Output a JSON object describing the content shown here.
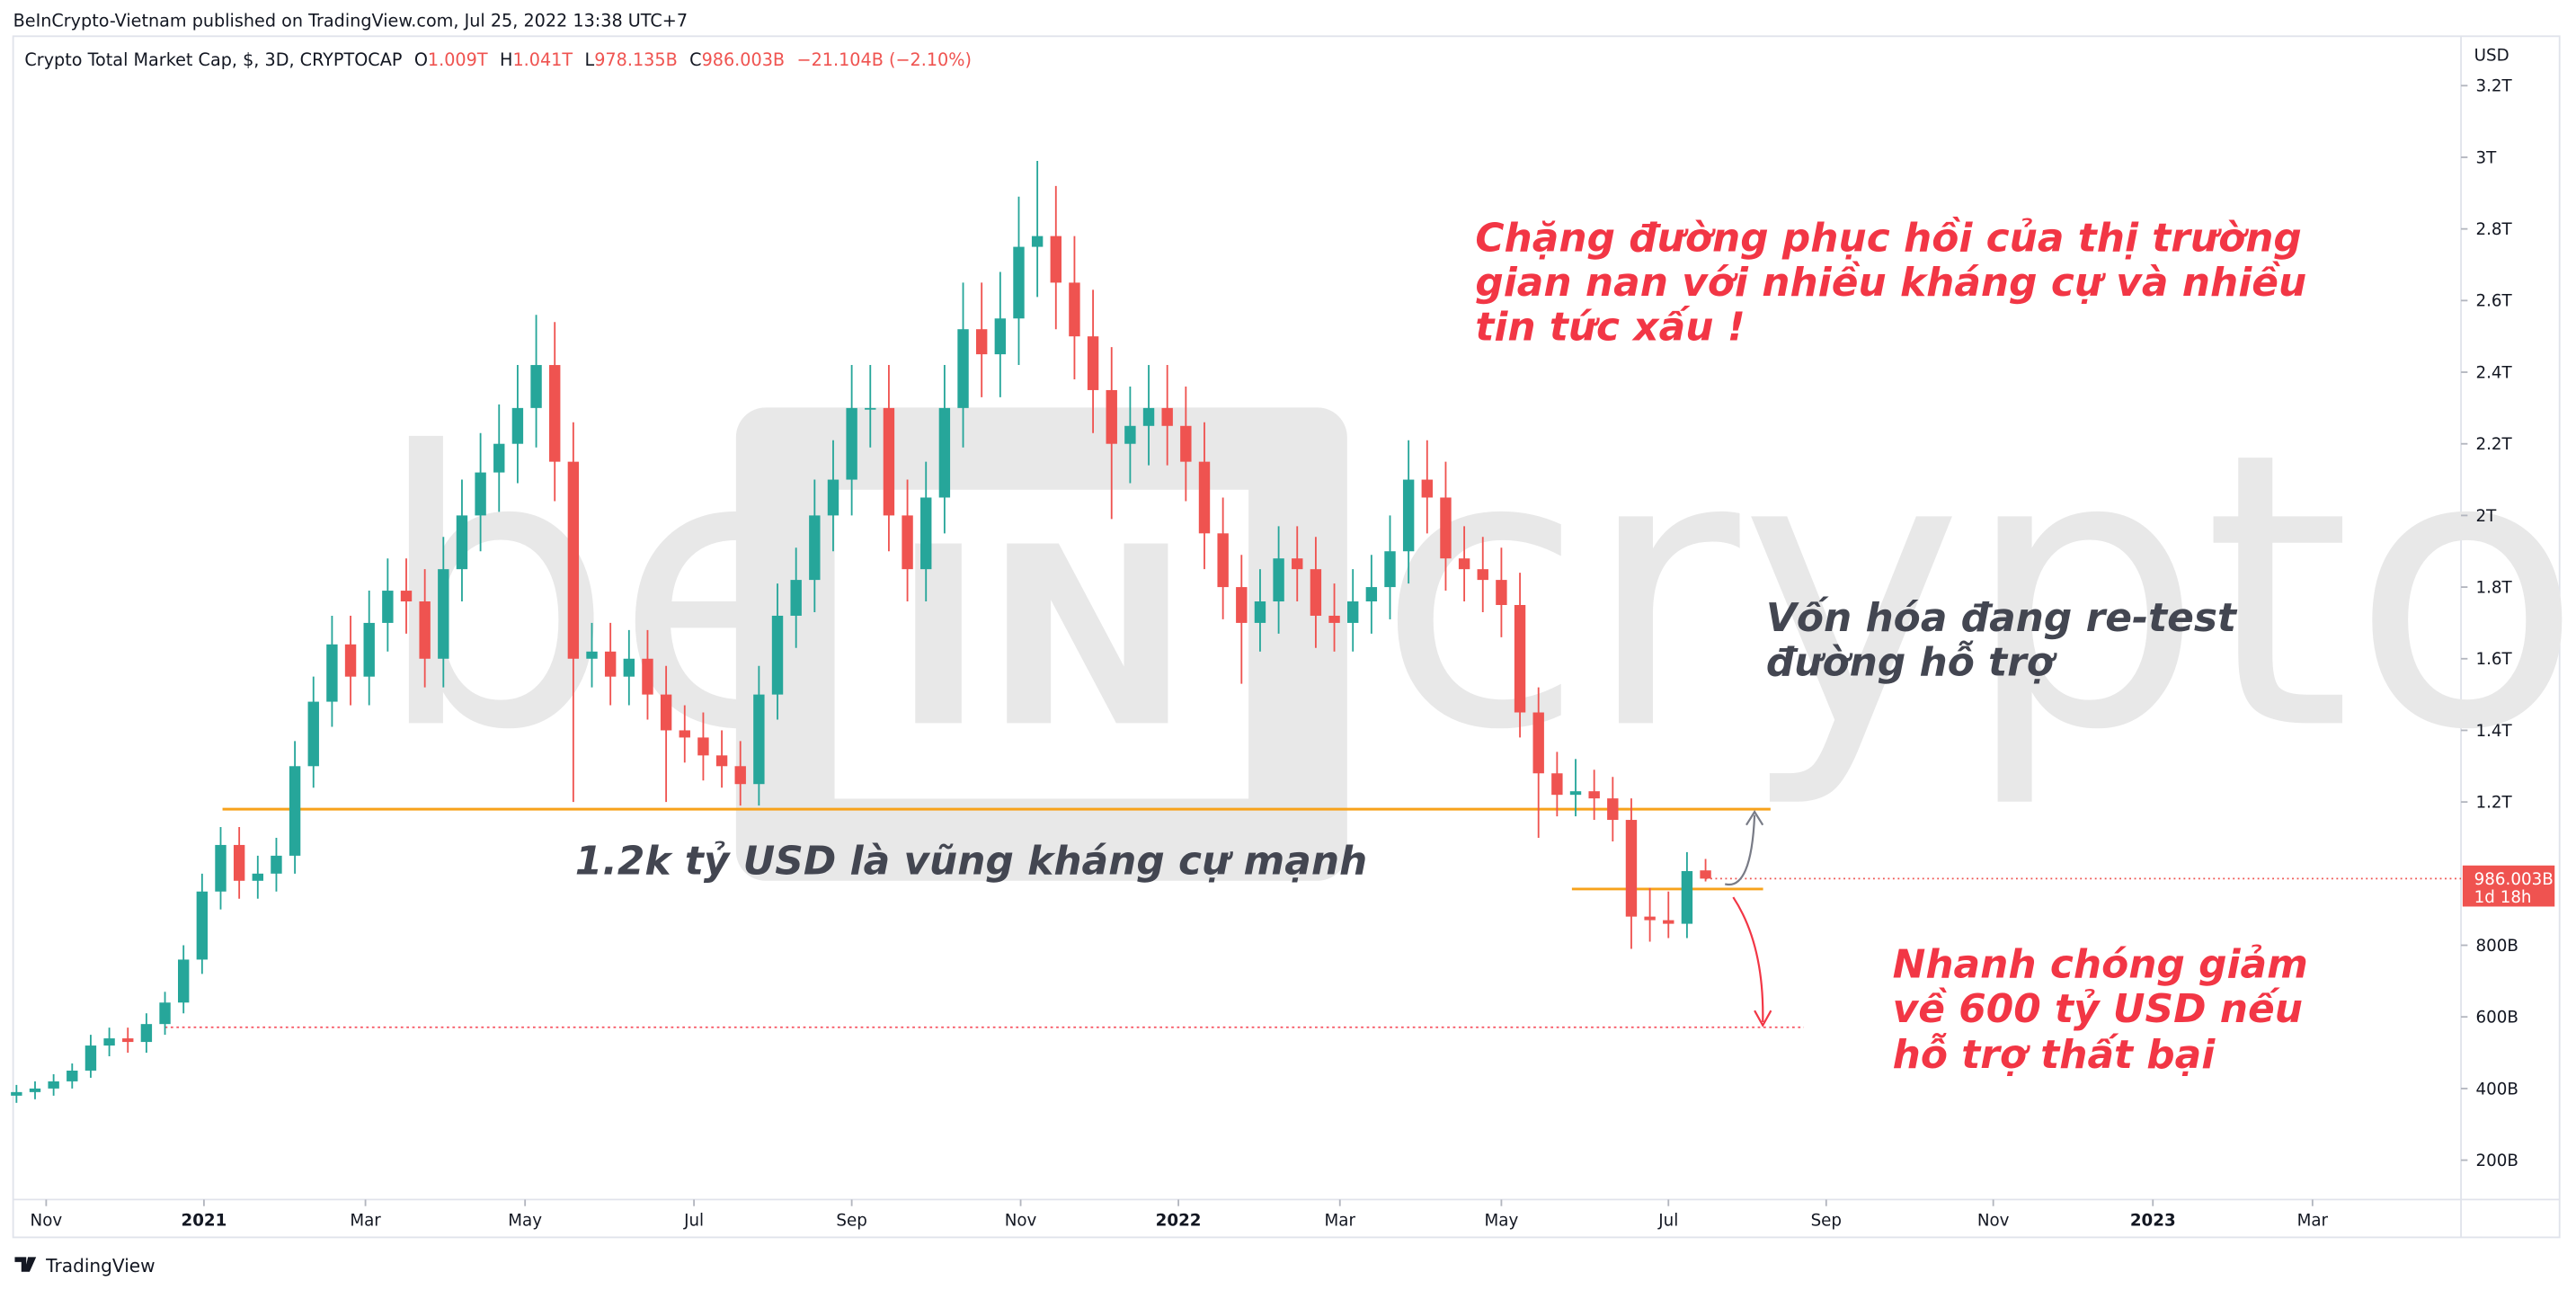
{
  "header": {
    "published": "BeInCrypto-Vietnam published on TradingView.com, Jul 25, 2022 13:38 UTC+7"
  },
  "chart_data": {
    "type": "candlestick",
    "title": "Crypto Total Market Cap, $, 3D, CRYPTOCAP",
    "legend_ohlc": [
      [
        "O",
        "1.009T"
      ],
      [
        "H",
        "1.041T"
      ],
      [
        "L",
        "978.135B"
      ],
      [
        "C",
        "986.003B"
      ]
    ],
    "change": "−21.104B (−2.10%)",
    "y_axis_label": "USD",
    "up_color": "#26a69a",
    "down_color": "#ef5350",
    "xlim": [
      -0.18,
      131.7
    ],
    "xticks": [
      {
        "value": 1.6,
        "label": "Nov"
      },
      {
        "value": 10.1,
        "label": "2021"
      },
      {
        "value": 18.8,
        "label": "Mar"
      },
      {
        "value": 27.4,
        "label": "May"
      },
      {
        "value": 36.5,
        "label": "Jul"
      },
      {
        "value": 45,
        "label": "Sep"
      },
      {
        "value": 54.1,
        "label": "Nov"
      },
      {
        "value": 62.6,
        "label": "2022"
      },
      {
        "value": 71.3,
        "label": "Mar"
      },
      {
        "value": 80,
        "label": "May"
      },
      {
        "value": 89,
        "label": "Jul"
      },
      {
        "value": 97.5,
        "label": "Sep"
      },
      {
        "value": 106.5,
        "label": "Nov"
      },
      {
        "value": 115.1,
        "label": "2023"
      },
      {
        "value": 123.7,
        "label": "Mar"
      }
    ],
    "ylim": [
      90,
      3338
    ],
    "yticks": [
      {
        "value": 200,
        "label": "200B"
      },
      {
        "value": 400,
        "label": "400B"
      },
      {
        "value": 600,
        "label": "600B"
      },
      {
        "value": 800,
        "label": "800B"
      },
      {
        "value": 1200,
        "label": "1.2T"
      },
      {
        "value": 1400,
        "label": "1.4T"
      },
      {
        "value": 1600,
        "label": "1.6T"
      },
      {
        "value": 1800,
        "label": "1.8T"
      },
      {
        "value": 2000,
        "label": "2T"
      },
      {
        "value": 2200,
        "label": "2.2T"
      },
      {
        "value": 2400,
        "label": "2.4T"
      },
      {
        "value": 2600,
        "label": "2.6T"
      },
      {
        "value": 2800,
        "label": "2.8T"
      },
      {
        "value": 3000,
        "label": "3T"
      },
      {
        "value": 3200,
        "label": "3.2T"
      }
    ],
    "open": [
      380,
      390,
      400,
      420,
      450,
      520,
      540,
      530,
      580,
      640,
      760,
      950,
      1080,
      980,
      1000,
      1050,
      1300,
      1480,
      1640,
      1550,
      1700,
      1790,
      1760,
      1600,
      1850,
      2000,
      2120,
      2200,
      2300,
      2420,
      2150,
      1600,
      1620,
      1550,
      1600,
      1500,
      1400,
      1380,
      1330,
      1300,
      1250,
      1500,
      1720,
      1820,
      2000,
      2100,
      2300,
      2300,
      2000,
      1850,
      2050,
      2300,
      2520,
      2450,
      2550,
      2750,
      2780,
      2650,
      2500,
      2350,
      2200,
      2250,
      2300,
      2250,
      2150,
      1950,
      1800,
      1700,
      1760,
      1880,
      1850,
      1720,
      1700,
      1760,
      1800,
      1900,
      2100,
      2050,
      1880,
      1850,
      1820,
      1750,
      1450,
      1280,
      1220,
      1230,
      1210,
      1150,
      880,
      870,
      860,
      1009
    ],
    "high": [
      410,
      420,
      440,
      470,
      550,
      570,
      570,
      610,
      670,
      800,
      1000,
      1130,
      1130,
      1050,
      1100,
      1370,
      1550,
      1720,
      1720,
      1790,
      1880,
      1880,
      1850,
      1940,
      2100,
      2230,
      2310,
      2420,
      2560,
      2540,
      2260,
      1700,
      1700,
      1680,
      1680,
      1580,
      1470,
      1450,
      1400,
      1370,
      1580,
      1810,
      1910,
      2100,
      2210,
      2420,
      2420,
      2420,
      2100,
      2150,
      2420,
      2650,
      2650,
      2680,
      2890,
      2990,
      2920,
      2780,
      2630,
      2470,
      2360,
      2420,
      2420,
      2360,
      2260,
      2050,
      1890,
      1850,
      1970,
      1970,
      1940,
      1810,
      1850,
      1890,
      2000,
      2210,
      2210,
      2150,
      1970,
      1940,
      1910,
      1840,
      1520,
      1340,
      1320,
      1290,
      1270,
      1210,
      960,
      950,
      1060,
      1041
    ],
    "low": [
      360,
      370,
      380,
      400,
      430,
      490,
      500,
      500,
      550,
      610,
      720,
      900,
      930,
      930,
      950,
      1000,
      1240,
      1410,
      1470,
      1470,
      1620,
      1670,
      1520,
      1520,
      1760,
      1900,
      2010,
      2090,
      2190,
      2040,
      1200,
      1520,
      1470,
      1470,
      1430,
      1200,
      1310,
      1260,
      1240,
      1190,
      1190,
      1430,
      1630,
      1730,
      1900,
      2000,
      2190,
      1900,
      1760,
      1760,
      1950,
      2190,
      2330,
      2330,
      2420,
      2610,
      2520,
      2380,
      2230,
      1990,
      2090,
      2140,
      2140,
      2040,
      1850,
      1710,
      1530,
      1620,
      1670,
      1760,
      1630,
      1620,
      1620,
      1670,
      1710,
      1810,
      1950,
      1790,
      1760,
      1730,
      1660,
      1380,
      1100,
      1160,
      1160,
      1150,
      1090,
      790,
      810,
      820,
      820,
      978.135
    ],
    "close": [
      390,
      400,
      420,
      450,
      520,
      540,
      530,
      580,
      640,
      760,
      950,
      1080,
      980,
      1000,
      1050,
      1300,
      1480,
      1640,
      1550,
      1700,
      1790,
      1760,
      1600,
      1850,
      2000,
      2120,
      2200,
      2300,
      2420,
      2150,
      1600,
      1620,
      1550,
      1600,
      1500,
      1400,
      1380,
      1330,
      1300,
      1250,
      1500,
      1720,
      1820,
      2000,
      2100,
      2300,
      2300,
      2000,
      1850,
      2050,
      2300,
      2520,
      2450,
      2550,
      2750,
      2780,
      2650,
      2500,
      2350,
      2200,
      2250,
      2300,
      2250,
      2150,
      1950,
      1800,
      1700,
      1760,
      1880,
      1850,
      1720,
      1700,
      1760,
      1800,
      1900,
      2100,
      2050,
      1880,
      1850,
      1820,
      1750,
      1450,
      1280,
      1220,
      1230,
      1210,
      1150,
      880,
      870,
      860,
      1007,
      986.003
    ],
    "last_price_label": "986.003B",
    "countdown": "1d 18h",
    "hlines": [
      {
        "value": 1180,
        "from": 11.1,
        "to": 94.5,
        "color": "#f7a21b",
        "style": "solid"
      },
      {
        "value": 957,
        "from": 83.8,
        "to": 94.1,
        "color": "#f7a21b",
        "style": "solid"
      },
      {
        "value": 571,
        "from": 8,
        "to": 96.3,
        "color": "#f7525f",
        "style": "dotted"
      }
    ],
    "annotations": {
      "headline": [
        "Chặng đường phục hồi của thị trường",
        "gian nan với nhiều kháng cự và nhiều",
        "tin tức xấu !"
      ],
      "retest": [
        "Vốn hóa đang re-test",
        "đường hỗ trợ"
      ],
      "resistance": "1.2k tỷ USD là vũng kháng cự mạnh",
      "downside": [
        "Nhanh chóng giảm",
        "về 600 tỷ USD nếu",
        "hỗ trợ thất bại"
      ]
    },
    "watermark": [
      "be",
      "IN",
      "crypto"
    ]
  },
  "footer": {
    "brand": "TradingView"
  }
}
